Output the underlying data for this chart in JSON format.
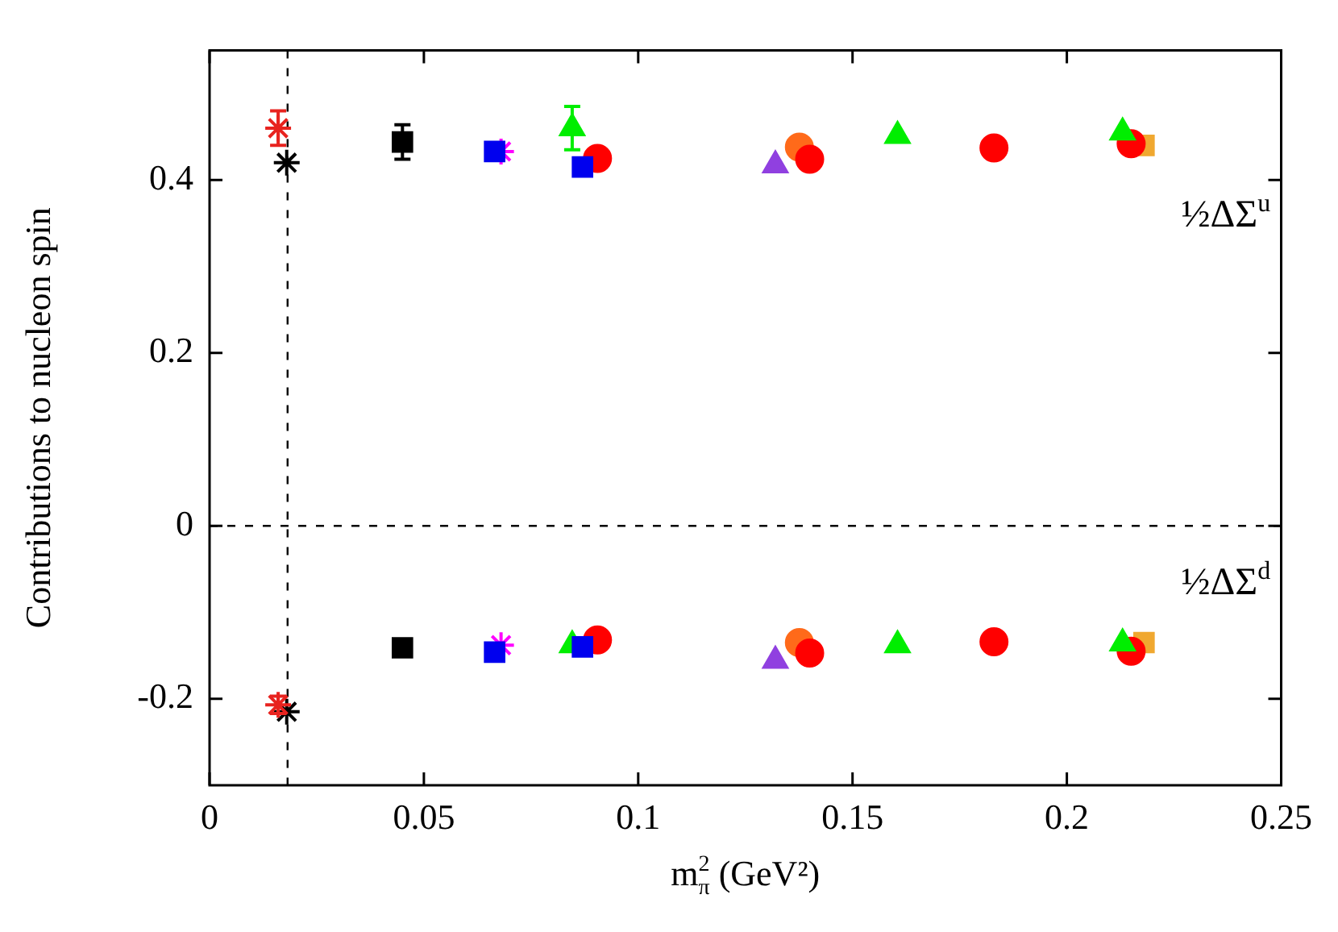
{
  "chart_data": {
    "type": "scatter",
    "xlabel": "m$_{π}$$^{2}$ (GeV²)",
    "ylabel": "Contributions to nucleon spin",
    "xlim": [
      0,
      0.25
    ],
    "xticks": [
      0,
      0.05,
      0.1,
      0.15,
      0.2,
      0.25
    ],
    "ylim": [
      -0.3,
      0.55
    ],
    "yticks": [
      -0.2,
      0,
      0.2,
      0.4
    ],
    "grid": false,
    "legend": false,
    "series": [
      {
        "color": "#e8231f",
        "marker": "cross",
        "x": [
          0.016,
          0.016
        ],
        "values": [
          0.46,
          -0.207
        ],
        "errors": [
          0.02,
          0.01
        ]
      },
      {
        "color": "#000000",
        "marker": "cross",
        "x": [
          0.018,
          0.018
        ],
        "values": [
          0.42,
          -0.215
        ]
      },
      {
        "color": "#000000",
        "marker": "square",
        "x": [
          0.045,
          0.045
        ],
        "values": [
          0.444,
          -0.141
        ],
        "errors": [
          0.02,
          null
        ]
      },
      {
        "color": "#0000ee",
        "marker": "square",
        "x": [
          0.0665,
          0.087,
          0.0665,
          0.087
        ],
        "values": [
          0.433,
          0.415,
          -0.146,
          -0.14
        ]
      },
      {
        "color": "#ff00ff",
        "marker": "cross",
        "x": [
          0.068,
          0.068
        ],
        "values": [
          0.433,
          -0.138
        ]
      },
      {
        "color": "#00ee00",
        "marker": "triangle",
        "x": [
          0.0846,
          0.1605,
          0.213,
          0.0846,
          0.1605,
          0.213
        ],
        "values": [
          0.46,
          0.451,
          0.455,
          -0.138,
          -0.138,
          -0.136
        ],
        "errors": [
          0.025,
          null,
          null,
          null,
          null,
          null
        ]
      },
      {
        "color": "#ff0000",
        "marker": "circle",
        "x": [
          0.0905,
          0.14,
          0.183,
          0.215,
          0.0905,
          0.14,
          0.183,
          0.215
        ],
        "values": [
          0.425,
          0.424,
          0.437,
          0.442,
          -0.132,
          -0.147,
          -0.134,
          -0.145
        ]
      },
      {
        "color": "#9040e0",
        "marker": "triangle",
        "x": [
          0.132,
          0.132
        ],
        "values": [
          0.417,
          -0.156
        ]
      },
      {
        "color": "#ff6a1a",
        "marker": "circle",
        "x": [
          0.1376,
          0.1376
        ],
        "values": [
          0.438,
          -0.135
        ]
      },
      {
        "color": "#f0a830",
        "marker": "square",
        "x": [
          0.218,
          0.218
        ],
        "values": [
          0.44,
          -0.135
        ]
      }
    ],
    "ref_lines": [
      {
        "axis": "y",
        "value": 0,
        "line_style": "dashed"
      },
      {
        "axis": "x",
        "value": 0.0182,
        "line_style": "dashed"
      }
    ],
    "annotations": [
      "½ΔΣ$^{u}$",
      "½ΔΣ$^{d}$"
    ]
  }
}
